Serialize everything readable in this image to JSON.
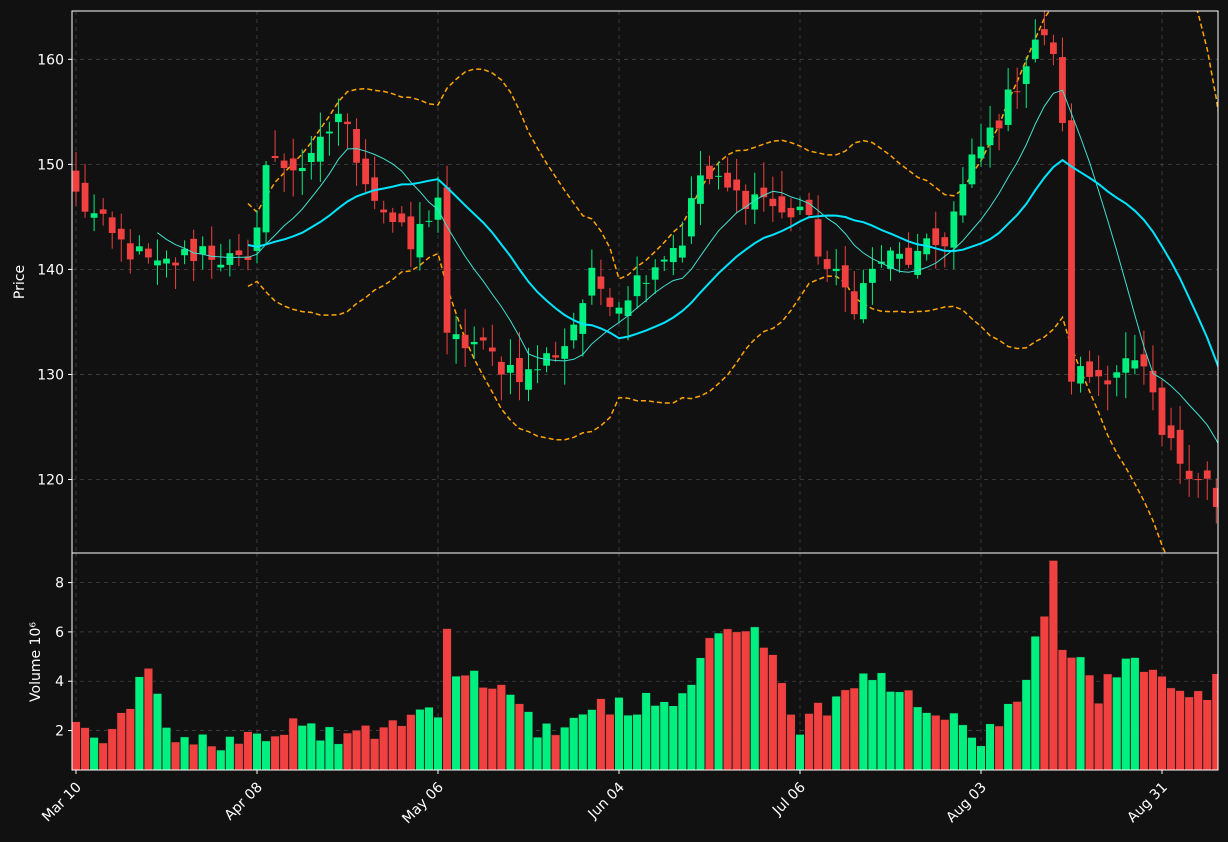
{
  "chart_data": {
    "type": "candlestick",
    "panels": [
      {
        "name": "price",
        "ylabel": "Price",
        "ylim": [
          113.0,
          164.6
        ],
        "yticks": [
          120,
          130,
          140,
          150,
          160
        ]
      },
      {
        "name": "volume",
        "ylabel": "Volume  10⁶",
        "ylim": [
          0.4,
          9.2
        ],
        "yticks": [
          2,
          4,
          6,
          8
        ],
        "unit": "millions"
      }
    ],
    "x_ticks": [
      {
        "label": "Mar 10",
        "index": 0
      },
      {
        "label": "Apr 08",
        "index": 20
      },
      {
        "label": "May 06",
        "index": 40
      },
      {
        "label": "Jun 04",
        "index": 60
      },
      {
        "label": "Jul 06",
        "index": 80
      },
      {
        "label": "Aug 03",
        "index": 100
      },
      {
        "label": "Aug 31",
        "index": 120
      }
    ],
    "colors": {
      "background": "#111111",
      "up": "#00f080",
      "down": "#f04040",
      "ma_fast": "#40e0d0",
      "ma_slow": "#00e5ff",
      "bollinger": "#ffa500",
      "grid": "#444444",
      "axis": "#ffffff"
    },
    "grid": true,
    "overlays": [
      {
        "type": "moving-average",
        "window": 10
      },
      {
        "type": "moving-average",
        "window": 20
      },
      {
        "type": "bollinger-bands",
        "window": 20
      }
    ],
    "keypoints": [
      [
        0,
        147
      ],
      [
        4,
        143
      ],
      [
        9,
        140
      ],
      [
        14,
        142
      ],
      [
        19,
        140
      ],
      [
        21,
        150
      ],
      [
        26,
        150
      ],
      [
        29,
        155
      ],
      [
        33,
        147
      ],
      [
        37,
        142
      ],
      [
        40,
        147
      ],
      [
        41,
        133
      ],
      [
        44,
        133
      ],
      [
        47,
        131
      ],
      [
        50,
        130
      ],
      [
        54,
        133
      ],
      [
        57,
        139
      ],
      [
        60,
        137
      ],
      [
        63,
        140
      ],
      [
        67,
        143
      ],
      [
        69,
        149
      ],
      [
        73,
        147
      ],
      [
        76,
        147
      ],
      [
        78,
        145
      ],
      [
        80,
        146
      ],
      [
        83,
        140
      ],
      [
        86,
        137
      ],
      [
        89,
        141
      ],
      [
        93,
        141
      ],
      [
        96,
        143
      ],
      [
        99,
        150
      ],
      [
        103,
        156
      ],
      [
        106,
        162
      ],
      [
        108,
        161
      ],
      [
        109,
        153
      ],
      [
        110,
        130
      ],
      [
        113,
        130
      ],
      [
        116,
        131
      ],
      [
        118,
        130
      ],
      [
        120,
        124
      ],
      [
        122,
        122
      ],
      [
        125,
        120
      ],
      [
        127,
        114
      ]
    ],
    "volume_keypoints": [
      [
        0,
        2.2
      ],
      [
        4,
        1.6
      ],
      [
        8,
        4.9
      ],
      [
        10,
        1.7
      ],
      [
        20,
        1.5
      ],
      [
        25,
        2.4
      ],
      [
        30,
        1.6
      ],
      [
        40,
        3.0
      ],
      [
        41,
        6.4
      ],
      [
        42,
        4.3
      ],
      [
        45,
        4.2
      ],
      [
        50,
        2.6
      ],
      [
        53,
        1.4
      ],
      [
        57,
        3.2
      ],
      [
        60,
        3.0
      ],
      [
        67,
        3.5
      ],
      [
        70,
        5.9
      ],
      [
        75,
        6.3
      ],
      [
        80,
        2.2
      ],
      [
        88,
        4.1
      ],
      [
        95,
        2.7
      ],
      [
        100,
        1.7
      ],
      [
        105,
        3.9
      ],
      [
        108,
        8.5
      ],
      [
        109,
        5.5
      ],
      [
        113,
        3.6
      ],
      [
        117,
        4.8
      ],
      [
        120,
        4.0
      ],
      [
        125,
        3.0
      ],
      [
        127,
        5.4
      ]
    ]
  }
}
